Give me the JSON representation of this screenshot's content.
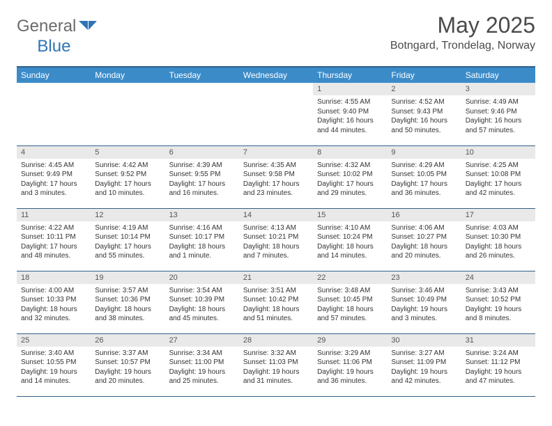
{
  "brand": {
    "general": "General",
    "blue": "Blue"
  },
  "title": "May 2025",
  "location": "Botngard, Trondelag, Norway",
  "colors": {
    "header_bg": "#3b8bc9",
    "header_border": "#2f5f8a",
    "daynum_bg": "#e9e9e9",
    "text": "#333333",
    "brand_gray": "#6b6b6b",
    "brand_blue": "#2f75b5"
  },
  "weekdays": [
    "Sunday",
    "Monday",
    "Tuesday",
    "Wednesday",
    "Thursday",
    "Friday",
    "Saturday"
  ],
  "grid": [
    [
      null,
      null,
      null,
      null,
      {
        "n": "1",
        "sr": "Sunrise: 4:55 AM",
        "ss": "Sunset: 9:40 PM",
        "dl1": "Daylight: 16 hours",
        "dl2": "and 44 minutes."
      },
      {
        "n": "2",
        "sr": "Sunrise: 4:52 AM",
        "ss": "Sunset: 9:43 PM",
        "dl1": "Daylight: 16 hours",
        "dl2": "and 50 minutes."
      },
      {
        "n": "3",
        "sr": "Sunrise: 4:49 AM",
        "ss": "Sunset: 9:46 PM",
        "dl1": "Daylight: 16 hours",
        "dl2": "and 57 minutes."
      }
    ],
    [
      {
        "n": "4",
        "sr": "Sunrise: 4:45 AM",
        "ss": "Sunset: 9:49 PM",
        "dl1": "Daylight: 17 hours",
        "dl2": "and 3 minutes."
      },
      {
        "n": "5",
        "sr": "Sunrise: 4:42 AM",
        "ss": "Sunset: 9:52 PM",
        "dl1": "Daylight: 17 hours",
        "dl2": "and 10 minutes."
      },
      {
        "n": "6",
        "sr": "Sunrise: 4:39 AM",
        "ss": "Sunset: 9:55 PM",
        "dl1": "Daylight: 17 hours",
        "dl2": "and 16 minutes."
      },
      {
        "n": "7",
        "sr": "Sunrise: 4:35 AM",
        "ss": "Sunset: 9:58 PM",
        "dl1": "Daylight: 17 hours",
        "dl2": "and 23 minutes."
      },
      {
        "n": "8",
        "sr": "Sunrise: 4:32 AM",
        "ss": "Sunset: 10:02 PM",
        "dl1": "Daylight: 17 hours",
        "dl2": "and 29 minutes."
      },
      {
        "n": "9",
        "sr": "Sunrise: 4:29 AM",
        "ss": "Sunset: 10:05 PM",
        "dl1": "Daylight: 17 hours",
        "dl2": "and 36 minutes."
      },
      {
        "n": "10",
        "sr": "Sunrise: 4:25 AM",
        "ss": "Sunset: 10:08 PM",
        "dl1": "Daylight: 17 hours",
        "dl2": "and 42 minutes."
      }
    ],
    [
      {
        "n": "11",
        "sr": "Sunrise: 4:22 AM",
        "ss": "Sunset: 10:11 PM",
        "dl1": "Daylight: 17 hours",
        "dl2": "and 48 minutes."
      },
      {
        "n": "12",
        "sr": "Sunrise: 4:19 AM",
        "ss": "Sunset: 10:14 PM",
        "dl1": "Daylight: 17 hours",
        "dl2": "and 55 minutes."
      },
      {
        "n": "13",
        "sr": "Sunrise: 4:16 AM",
        "ss": "Sunset: 10:17 PM",
        "dl1": "Daylight: 18 hours",
        "dl2": "and 1 minute."
      },
      {
        "n": "14",
        "sr": "Sunrise: 4:13 AM",
        "ss": "Sunset: 10:21 PM",
        "dl1": "Daylight: 18 hours",
        "dl2": "and 7 minutes."
      },
      {
        "n": "15",
        "sr": "Sunrise: 4:10 AM",
        "ss": "Sunset: 10:24 PM",
        "dl1": "Daylight: 18 hours",
        "dl2": "and 14 minutes."
      },
      {
        "n": "16",
        "sr": "Sunrise: 4:06 AM",
        "ss": "Sunset: 10:27 PM",
        "dl1": "Daylight: 18 hours",
        "dl2": "and 20 minutes."
      },
      {
        "n": "17",
        "sr": "Sunrise: 4:03 AM",
        "ss": "Sunset: 10:30 PM",
        "dl1": "Daylight: 18 hours",
        "dl2": "and 26 minutes."
      }
    ],
    [
      {
        "n": "18",
        "sr": "Sunrise: 4:00 AM",
        "ss": "Sunset: 10:33 PM",
        "dl1": "Daylight: 18 hours",
        "dl2": "and 32 minutes."
      },
      {
        "n": "19",
        "sr": "Sunrise: 3:57 AM",
        "ss": "Sunset: 10:36 PM",
        "dl1": "Daylight: 18 hours",
        "dl2": "and 38 minutes."
      },
      {
        "n": "20",
        "sr": "Sunrise: 3:54 AM",
        "ss": "Sunset: 10:39 PM",
        "dl1": "Daylight: 18 hours",
        "dl2": "and 45 minutes."
      },
      {
        "n": "21",
        "sr": "Sunrise: 3:51 AM",
        "ss": "Sunset: 10:42 PM",
        "dl1": "Daylight: 18 hours",
        "dl2": "and 51 minutes."
      },
      {
        "n": "22",
        "sr": "Sunrise: 3:48 AM",
        "ss": "Sunset: 10:45 PM",
        "dl1": "Daylight: 18 hours",
        "dl2": "and 57 minutes."
      },
      {
        "n": "23",
        "sr": "Sunrise: 3:46 AM",
        "ss": "Sunset: 10:49 PM",
        "dl1": "Daylight: 19 hours",
        "dl2": "and 3 minutes."
      },
      {
        "n": "24",
        "sr": "Sunrise: 3:43 AM",
        "ss": "Sunset: 10:52 PM",
        "dl1": "Daylight: 19 hours",
        "dl2": "and 8 minutes."
      }
    ],
    [
      {
        "n": "25",
        "sr": "Sunrise: 3:40 AM",
        "ss": "Sunset: 10:55 PM",
        "dl1": "Daylight: 19 hours",
        "dl2": "and 14 minutes."
      },
      {
        "n": "26",
        "sr": "Sunrise: 3:37 AM",
        "ss": "Sunset: 10:57 PM",
        "dl1": "Daylight: 19 hours",
        "dl2": "and 20 minutes."
      },
      {
        "n": "27",
        "sr": "Sunrise: 3:34 AM",
        "ss": "Sunset: 11:00 PM",
        "dl1": "Daylight: 19 hours",
        "dl2": "and 25 minutes."
      },
      {
        "n": "28",
        "sr": "Sunrise: 3:32 AM",
        "ss": "Sunset: 11:03 PM",
        "dl1": "Daylight: 19 hours",
        "dl2": "and 31 minutes."
      },
      {
        "n": "29",
        "sr": "Sunrise: 3:29 AM",
        "ss": "Sunset: 11:06 PM",
        "dl1": "Daylight: 19 hours",
        "dl2": "and 36 minutes."
      },
      {
        "n": "30",
        "sr": "Sunrise: 3:27 AM",
        "ss": "Sunset: 11:09 PM",
        "dl1": "Daylight: 19 hours",
        "dl2": "and 42 minutes."
      },
      {
        "n": "31",
        "sr": "Sunrise: 3:24 AM",
        "ss": "Sunset: 11:12 PM",
        "dl1": "Daylight: 19 hours",
        "dl2": "and 47 minutes."
      }
    ]
  ]
}
